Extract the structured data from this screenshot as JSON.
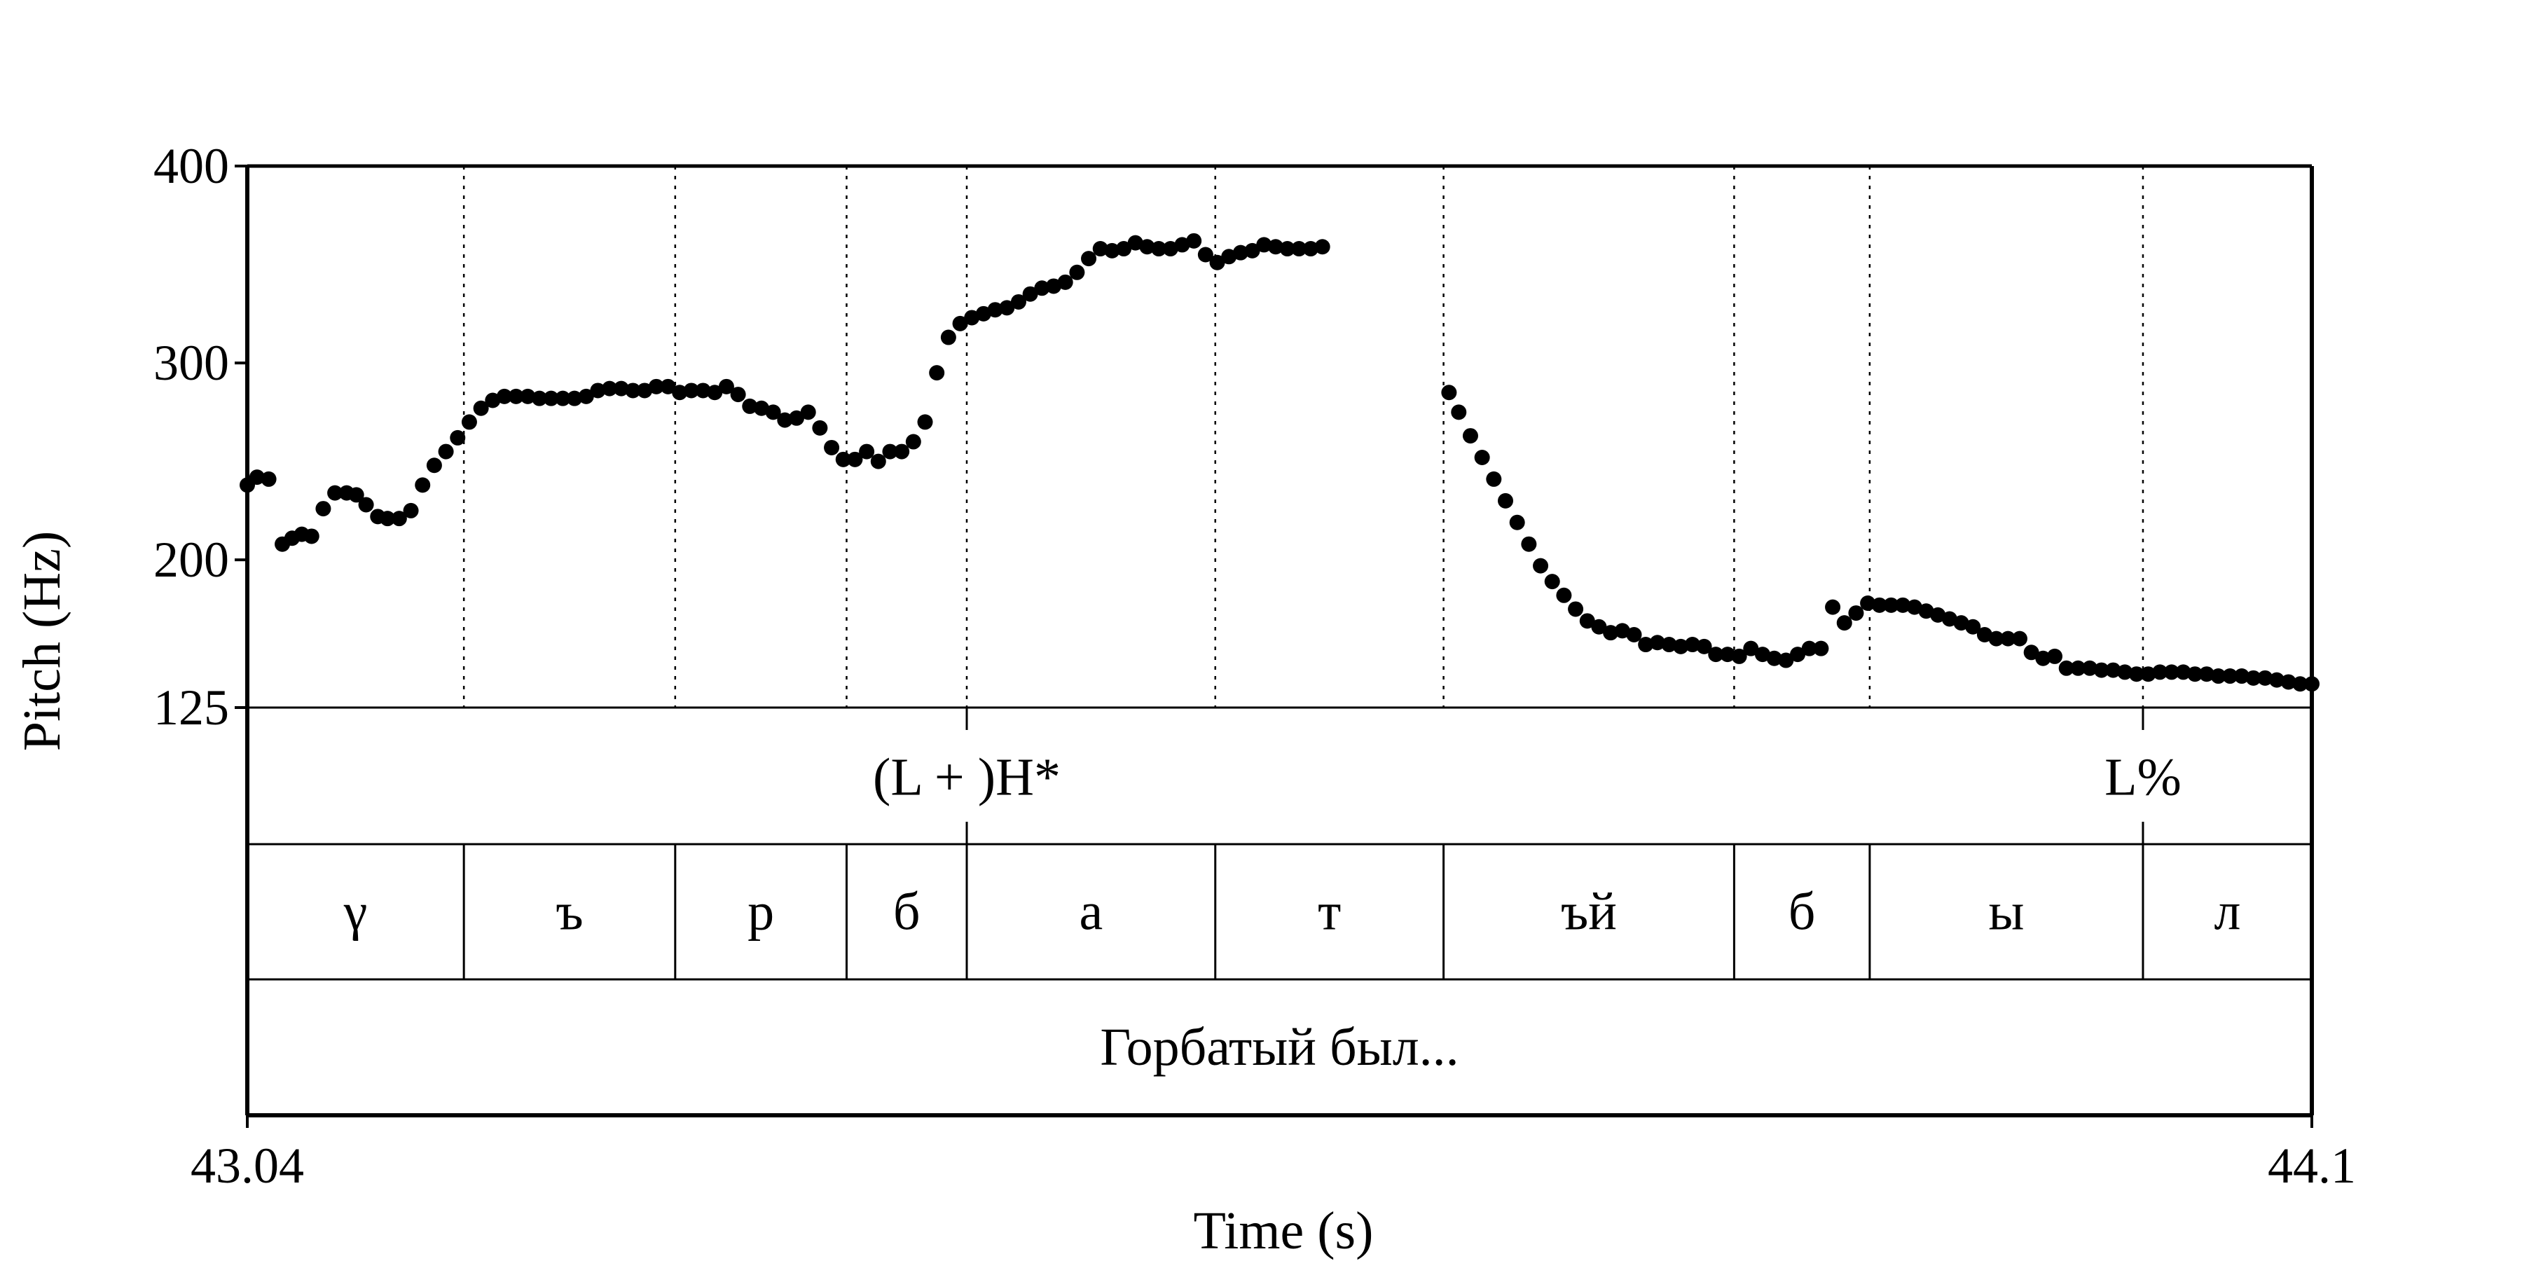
{
  "chart_data": {
    "type": "scatter",
    "xlabel": "Time (s)",
    "ylabel": "Pitch (Hz)",
    "xlim": [
      43.04,
      44.1
    ],
    "ylim": [
      125,
      400
    ],
    "x_tick_labels": [
      "43.04",
      "44.1"
    ],
    "y_ticks": [
      125,
      200,
      300,
      400
    ],
    "y_tick_labels": [
      "125",
      "200",
      "300",
      "400"
    ],
    "boundaries": [
      43.1512,
      43.2597,
      43.3477,
      43.4094,
      43.537,
      43.6542,
      43.8034,
      43.873,
      44.0133
    ],
    "tones": [
      {
        "label": "(L + )H*",
        "time": 43.4094
      },
      {
        "label": "L%",
        "time": 44.0133
      }
    ],
    "segments": [
      {
        "label": "γ",
        "start": 43.04,
        "end": 43.1512
      },
      {
        "label": "ъ",
        "start": 43.1512,
        "end": 43.2597
      },
      {
        "label": "р",
        "start": 43.2597,
        "end": 43.3477
      },
      {
        "label": "б",
        "start": 43.3477,
        "end": 43.4094
      },
      {
        "label": "а",
        "start": 43.4094,
        "end": 43.537
      },
      {
        "label": "т",
        "start": 43.537,
        "end": 43.6542
      },
      {
        "label": "ъй",
        "start": 43.6542,
        "end": 43.8034
      },
      {
        "label": "б",
        "start": 43.8034,
        "end": 43.873
      },
      {
        "label": "ы",
        "start": 43.873,
        "end": 44.0133
      },
      {
        "label": "л",
        "start": 44.0133,
        "end": 44.1
      }
    ],
    "words": [
      {
        "label": "Горбатый был...",
        "start": 43.04,
        "end": 44.1
      }
    ],
    "series": [
      {
        "points": [
          [
            43.04,
            238
          ],
          [
            43.045,
            242
          ],
          [
            43.051,
            241
          ],
          [
            43.058,
            208
          ],
          [
            43.063,
            211
          ],
          [
            43.068,
            213
          ],
          [
            43.073,
            212
          ],
          [
            43.079,
            226
          ],
          [
            43.085,
            234
          ],
          [
            43.091,
            234
          ],
          [
            43.096,
            233
          ],
          [
            43.101,
            228
          ],
          [
            43.107,
            222
          ],
          [
            43.112,
            221
          ],
          [
            43.118,
            221
          ],
          [
            43.124,
            225
          ],
          [
            43.13,
            238
          ],
          [
            43.136,
            248
          ],
          [
            43.142,
            255
          ],
          [
            43.148,
            262
          ],
          [
            43.154,
            270
          ],
          [
            43.16,
            277
          ],
          [
            43.166,
            281
          ],
          [
            43.172,
            283
          ],
          [
            43.178,
            283
          ],
          [
            43.184,
            283
          ],
          [
            43.19,
            282
          ],
          [
            43.196,
            282
          ],
          [
            43.202,
            282
          ],
          [
            43.208,
            282
          ],
          [
            43.214,
            283
          ],
          [
            43.22,
            286
          ],
          [
            43.226,
            287
          ],
          [
            43.232,
            287
          ],
          [
            43.238,
            286
          ],
          [
            43.244,
            286
          ],
          [
            43.25,
            288
          ],
          [
            43.256,
            288
          ],
          [
            43.262,
            285
          ],
          [
            43.268,
            286
          ],
          [
            43.274,
            286
          ],
          [
            43.28,
            285
          ],
          [
            43.286,
            288
          ],
          [
            43.292,
            284
          ],
          [
            43.298,
            278
          ],
          [
            43.304,
            277
          ],
          [
            43.31,
            275
          ],
          [
            43.316,
            271
          ],
          [
            43.322,
            272
          ],
          [
            43.328,
            275
          ],
          [
            43.334,
            267
          ],
          [
            43.34,
            257
          ],
          [
            43.346,
            251
          ],
          [
            43.352,
            251
          ],
          [
            43.358,
            255
          ],
          [
            43.364,
            250
          ],
          [
            43.37,
            255
          ],
          [
            43.376,
            255
          ],
          [
            43.382,
            260
          ],
          [
            43.388,
            270
          ],
          [
            43.394,
            295
          ],
          [
            43.4,
            313
          ],
          [
            43.406,
            320
          ],
          [
            43.412,
            323
          ],
          [
            43.418,
            325
          ],
          [
            43.424,
            327
          ],
          [
            43.43,
            328
          ],
          [
            43.436,
            331
          ],
          [
            43.442,
            335
          ],
          [
            43.448,
            338
          ],
          [
            43.454,
            339
          ],
          [
            43.46,
            341
          ],
          [
            43.466,
            346
          ],
          [
            43.472,
            353
          ],
          [
            43.478,
            358
          ],
          [
            43.484,
            357
          ],
          [
            43.49,
            358
          ],
          [
            43.496,
            361
          ],
          [
            43.502,
            359
          ],
          [
            43.508,
            358
          ],
          [
            43.514,
            358
          ],
          [
            43.52,
            360
          ],
          [
            43.526,
            362
          ],
          [
            43.532,
            355
          ],
          [
            43.538,
            351
          ],
          [
            43.544,
            354
          ],
          [
            43.55,
            356
          ],
          [
            43.556,
            357
          ],
          [
            43.562,
            360
          ],
          [
            43.568,
            359
          ],
          [
            43.574,
            358
          ],
          [
            43.58,
            358
          ],
          [
            43.586,
            358
          ],
          [
            43.592,
            359
          ],
          [
            43.657,
            285
          ],
          [
            43.662,
            275
          ],
          [
            43.668,
            263
          ],
          [
            43.674,
            252
          ],
          [
            43.68,
            241
          ],
          [
            43.686,
            230
          ],
          [
            43.692,
            219
          ],
          [
            43.698,
            208
          ],
          [
            43.704,
            197
          ],
          [
            43.71,
            189
          ],
          [
            43.716,
            182
          ],
          [
            43.722,
            175
          ],
          [
            43.728,
            169
          ],
          [
            43.734,
            166
          ],
          [
            43.74,
            163
          ],
          [
            43.746,
            164
          ],
          [
            43.752,
            162
          ],
          [
            43.758,
            157
          ],
          [
            43.764,
            158
          ],
          [
            43.77,
            157
          ],
          [
            43.776,
            156
          ],
          [
            43.782,
            157
          ],
          [
            43.788,
            156
          ],
          [
            43.794,
            152
          ],
          [
            43.8,
            152
          ],
          [
            43.806,
            151
          ],
          [
            43.812,
            155
          ],
          [
            43.818,
            152
          ],
          [
            43.824,
            150
          ],
          [
            43.83,
            149
          ],
          [
            43.836,
            152
          ],
          [
            43.842,
            155
          ],
          [
            43.848,
            155
          ],
          [
            43.854,
            176
          ],
          [
            43.86,
            168
          ],
          [
            43.866,
            173
          ],
          [
            43.872,
            178
          ],
          [
            43.878,
            177
          ],
          [
            43.884,
            177
          ],
          [
            43.89,
            177
          ],
          [
            43.896,
            176
          ],
          [
            43.902,
            174
          ],
          [
            43.908,
            172
          ],
          [
            43.914,
            170
          ],
          [
            43.92,
            168
          ],
          [
            43.926,
            166
          ],
          [
            43.932,
            162
          ],
          [
            43.938,
            160
          ],
          [
            43.944,
            160
          ],
          [
            43.95,
            160
          ],
          [
            43.956,
            153
          ],
          [
            43.962,
            150
          ],
          [
            43.968,
            151
          ],
          [
            43.974,
            145
          ],
          [
            43.98,
            145
          ],
          [
            43.986,
            145
          ],
          [
            43.992,
            144
          ],
          [
            43.998,
            144
          ],
          [
            44.004,
            143
          ],
          [
            44.01,
            142
          ],
          [
            44.016,
            142
          ],
          [
            44.022,
            143
          ],
          [
            44.028,
            143
          ],
          [
            44.034,
            143
          ],
          [
            44.04,
            142
          ],
          [
            44.046,
            142
          ],
          [
            44.052,
            141
          ],
          [
            44.058,
            141
          ],
          [
            44.064,
            141
          ],
          [
            44.07,
            140
          ],
          [
            44.076,
            140
          ],
          [
            44.082,
            139
          ],
          [
            44.088,
            138
          ],
          [
            44.094,
            137
          ],
          [
            44.1,
            137
          ]
        ]
      }
    ]
  }
}
